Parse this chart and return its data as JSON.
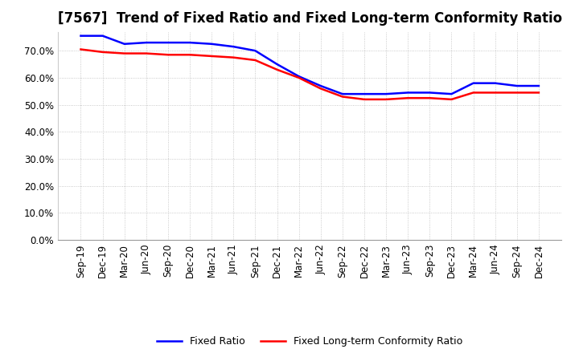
{
  "title": "[7567]  Trend of Fixed Ratio and Fixed Long-term Conformity Ratio",
  "x_labels": [
    "Sep-19",
    "Dec-19",
    "Mar-20",
    "Jun-20",
    "Sep-20",
    "Dec-20",
    "Mar-21",
    "Jun-21",
    "Sep-21",
    "Dec-21",
    "Mar-22",
    "Jun-22",
    "Sep-22",
    "Dec-22",
    "Mar-23",
    "Jun-23",
    "Sep-23",
    "Dec-23",
    "Mar-24",
    "Jun-24",
    "Sep-24",
    "Dec-24"
  ],
  "fixed_ratio": [
    75.5,
    75.5,
    72.5,
    73.0,
    73.0,
    73.0,
    72.5,
    71.5,
    70.0,
    65.0,
    60.5,
    57.0,
    54.0,
    54.0,
    54.0,
    54.5,
    54.5,
    54.0,
    58.0,
    58.0,
    57.0,
    57.0
  ],
  "fixed_lt_ratio": [
    70.5,
    69.5,
    69.0,
    69.0,
    68.5,
    68.5,
    68.0,
    67.5,
    66.5,
    63.0,
    60.0,
    56.0,
    53.0,
    52.0,
    52.0,
    52.5,
    52.5,
    52.0,
    54.5,
    54.5,
    54.5,
    54.5
  ],
  "fixed_ratio_color": "#0000FF",
  "fixed_lt_ratio_color": "#FF0000",
  "ylim": [
    0,
    77
  ],
  "yticks": [
    0,
    10,
    20,
    30,
    40,
    50,
    60,
    70
  ],
  "background_color": "#FFFFFF",
  "plot_bg_color": "#FFFFFF",
  "grid_color": "#BBBBBB",
  "line_width": 1.8,
  "title_fontsize": 12,
  "tick_fontsize": 8.5,
  "legend_fontsize": 9
}
